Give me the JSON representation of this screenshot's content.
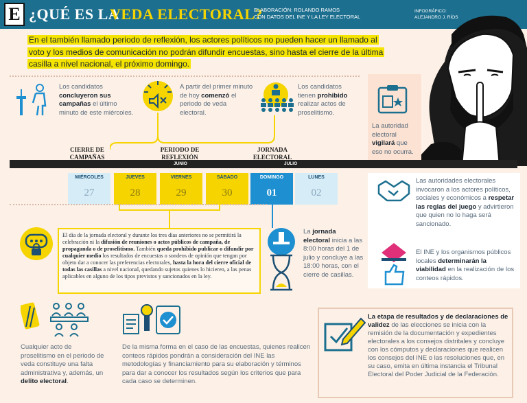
{
  "header": {
    "logo_letter": "E",
    "title_part1": "¿QUÉ ES LA",
    "title_part2": "VEDA ELECTORAL?",
    "credit_line1": "ELABORACIÓN: ROLANDO RAMOS",
    "credit_line2": "CON DATOS DEL INE Y LA LEY ELECTORAL",
    "infographic_label": "INFOGRÁFICO:",
    "infographic_author": "ALEJANDRO J. RÍOS"
  },
  "intro": "En el también llamado periodo de reflexión, los actores políticos no pueden hacer un llamado al voto y los medios de comunicación no podrán difundir encuestas, sino hasta el cierre de la última casilla a nivel nacional, el próximo domingo.",
  "facts_top": [
    {
      "pre": "Los candidatos",
      "bold": "concluyeron sus campañas",
      "post": "el último minuto de este miércoles."
    },
    {
      "pre": "A partir del primer minuto de hoy",
      "bold": "comenzó",
      "post": "el periodo de veda electoral."
    },
    {
      "pre": "Los candidatos tienen",
      "bold": "prohibido",
      "post": "realizar actos de proselitismo."
    }
  ],
  "authority": {
    "pre": "La autoridad electoral",
    "bold": "vigilará",
    "post": "que eso no ocurra."
  },
  "phases": [
    "CIERRE DE CAMPAÑAS",
    "PERIODO DE REFLEXIÓN",
    "JORNADA ELECTORAL"
  ],
  "months": [
    "JUNIO",
    "JULIO"
  ],
  "days": [
    {
      "name": "MIÉRCOLES",
      "num": "27",
      "style": "plain"
    },
    {
      "name": "JUEVES",
      "num": "28",
      "style": "yellow"
    },
    {
      "name": "VIERNES",
      "num": "29",
      "style": "yellow"
    },
    {
      "name": "SÁBADO",
      "num": "30",
      "style": "yellow"
    },
    {
      "name": "DOMINGO",
      "num": "01",
      "style": "blue"
    },
    {
      "name": "LUNES",
      "num": "02",
      "style": "plain"
    }
  ],
  "yellow_box": {
    "p1": "El día de la jornada electoral y durante los tres días anteriores no se permitirá la celebración ni la",
    "b1": "difusión de reuniones o actos públicos de campaña, de propaganda o de proselitismo.",
    "p2": "También",
    "b2": "queda prohibido publicar o difundir por cualquier medio",
    "p3": "los resultados de encuestas o sondeos de opinión que tengan por objeto dar a conocer las preferencias electorales,",
    "b3": "hasta la hora del cierre oficial de todas las casillas",
    "p4": "a nivel nacional, quedando sujetos quienes lo hicieren, a las penas aplicables en alguno de los tipos previstos y sancionados en la ley."
  },
  "jornada": {
    "pre": "La",
    "bold": "jornada electoral",
    "post": "inicia a las 8:00 horas del 1 de julio y concluye a las 18:00 horas, con el cierre de casillas."
  },
  "right_facts": [
    {
      "pre": "Las autoridades electorales invocaron a los actores políticos, sociales y económicos a",
      "bold": "respetar las reglas del juego",
      "post": "y advirtieron que quien no lo haga será sancionado."
    },
    {
      "pre": "El INE y los organismos públicos locales",
      "bold": "determinarán la viabilidad",
      "post": "en la realización de los conteos rápidos."
    }
  ],
  "bottom": {
    "delito": {
      "pre": "Cualquier acto de proselitismo en el periodo de veda constituye una falta administrativa y, además, un",
      "bold": "delito electoral",
      "post": "."
    },
    "conteos": "De la misma forma en el caso de las encuestas, quienes realicen conteos rápidos pondrán a consideración del INE las metodologías y financiamiento para su elaboración y términos para dar a conocer los resultados según los criterios que para cada caso se determinen.",
    "result": {
      "bold": "La etapa de resultados y de declaraciones de validez",
      "post": "de las elecciones se inicia con la remisión de la documentación y expedientes electorales a los consejos distritales y concluye con los cómputos y declaraciones que realicen los consejos del INE o las resoluciones que, en su caso, emita en última instancia el Tribunal Electoral del Poder Judicial de la Federación."
    }
  },
  "colors": {
    "header": "#1c6f8f",
    "yellow": "#f5d400",
    "blue": "#1e8fd0",
    "lightblue": "#d6ecf7",
    "navy": "#1c4f73",
    "pink": "#e0307a"
  }
}
